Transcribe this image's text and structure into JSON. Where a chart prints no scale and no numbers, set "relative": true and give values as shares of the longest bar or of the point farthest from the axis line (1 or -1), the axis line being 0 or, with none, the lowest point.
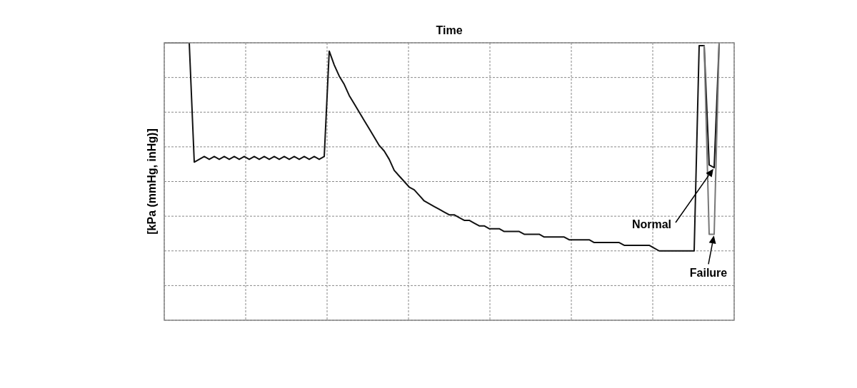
{
  "chart_data": {
    "type": "line",
    "relative": true,
    "xlabel": "Time",
    "ylabel": "[kPa (mmHg, inHg)]",
    "grid": true,
    "annotations": [
      "Normal",
      "Failure"
    ],
    "categories": [
      null,
      null,
      null,
      null,
      null,
      null,
      null,
      null,
      null,
      null,
      null,
      null,
      null,
      null,
      null,
      null,
      null,
      null,
      null,
      null,
      null,
      null,
      null,
      null,
      null,
      null,
      null,
      null,
      null,
      null,
      null,
      null,
      null,
      null,
      null,
      null,
      null,
      null,
      null,
      null,
      null,
      null,
      null,
      null,
      null,
      null,
      null,
      null,
      null,
      null,
      null,
      null,
      null,
      null,
      null,
      null,
      null,
      null,
      null,
      null,
      null,
      null,
      null,
      null,
      null,
      null,
      null,
      null,
      null,
      null,
      null,
      null,
      null,
      null,
      null,
      null,
      null,
      null,
      null,
      null,
      null,
      null,
      null,
      null,
      null,
      null,
      null,
      null,
      null,
      null,
      null,
      null,
      null,
      null,
      null,
      null,
      null,
      null,
      null,
      null,
      null,
      null,
      null,
      null,
      null,
      null,
      null,
      null,
      null,
      null,
      null,
      null,
      null,
      null,
      null
    ],
    "series": [
      {
        "color": "#111111",
        "values": [
          1,
          1,
          1,
          1,
          1,
          1,
          0.57,
          0.58,
          0.59,
          0.58,
          0.59,
          0.58,
          0.59,
          0.58,
          0.59,
          0.58,
          0.59,
          0.58,
          0.59,
          0.58,
          0.59,
          0.58,
          0.59,
          0.58,
          0.59,
          0.58,
          0.59,
          0.58,
          0.59,
          0.58,
          0.59,
          0.58,
          0.59,
          0.97,
          0.92,
          0.88,
          0.85,
          0.81,
          0.78,
          0.75,
          0.72,
          0.69,
          0.66,
          0.63,
          0.61,
          0.58,
          0.54,
          0.52,
          0.5,
          0.48,
          0.47,
          0.45,
          0.43,
          0.42,
          0.41,
          0.4,
          0.39,
          0.38,
          0.38,
          0.37,
          0.36,
          0.36,
          0.35,
          0.34,
          0.34,
          0.33,
          0.33,
          0.33,
          0.32,
          0.32,
          0.32,
          0.32,
          0.31,
          0.31,
          0.31,
          0.31,
          0.3,
          0.3,
          0.3,
          0.3,
          0.3,
          0.29,
          0.29,
          0.29,
          0.29,
          0.29,
          0.28,
          0.28,
          0.28,
          0.28,
          0.28,
          0.28,
          0.27,
          0.27,
          0.27,
          0.27,
          0.27,
          0.27,
          0.26,
          0.25,
          0.25,
          0.25,
          0.25,
          0.25,
          0.25,
          0.25,
          0.25,
          0.99,
          0.99,
          0.56,
          0.55,
          1,
          null,
          null,
          null
        ]
      },
      {
        "color": "#777777",
        "values": [
          null,
          null,
          null,
          null,
          null,
          null,
          null,
          null,
          null,
          null,
          null,
          null,
          null,
          null,
          null,
          null,
          null,
          null,
          null,
          null,
          null,
          null,
          null,
          null,
          null,
          null,
          null,
          null,
          null,
          null,
          null,
          null,
          null,
          null,
          null,
          null,
          null,
          null,
          null,
          null,
          null,
          null,
          null,
          null,
          null,
          null,
          null,
          null,
          null,
          null,
          null,
          null,
          null,
          null,
          null,
          null,
          null,
          null,
          null,
          null,
          null,
          null,
          null,
          null,
          null,
          null,
          null,
          null,
          null,
          null,
          null,
          null,
          null,
          null,
          null,
          null,
          null,
          null,
          null,
          null,
          null,
          null,
          null,
          null,
          null,
          null,
          null,
          null,
          null,
          null,
          null,
          null,
          null,
          null,
          null,
          null,
          null,
          null,
          null,
          null,
          null,
          null,
          null,
          null,
          null,
          null,
          null,
          null,
          0.99,
          0.31,
          0.31,
          1,
          null,
          null,
          null
        ]
      }
    ]
  }
}
